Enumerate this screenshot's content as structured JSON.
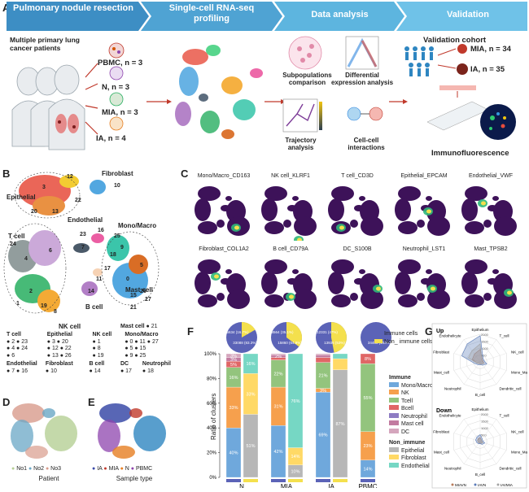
{
  "panel_a": {
    "letter": "A",
    "steps": [
      "Pulmonary nodule resection",
      "Single-cell RNA-seq profiling",
      "Data analysis",
      "Validation"
    ],
    "patients_label": "Multiple primary lung cancer patients",
    "samples": [
      {
        "name": "PBMC",
        "n": "PBMC, n = 3"
      },
      {
        "name": "N",
        "n": "N, n = 3"
      },
      {
        "name": "MIA",
        "n": "MIA, n = 3"
      },
      {
        "name": "IA",
        "n": "IA, n = 4"
      }
    ],
    "analyses": [
      "Subpopulations comparison",
      "Differential expression analysis",
      "Trajectory analysis",
      "Cell-cell interactions"
    ],
    "validation": {
      "cohort_label": "Validation cohort",
      "mia": "MIA, n = 34",
      "ia": "IA, n = 35",
      "method": "Immunofluorescence"
    },
    "colors": {
      "arrow_dark": "#2f7fb4",
      "arrow_light": "#76c6e8",
      "accent_red": "#c0392b"
    }
  },
  "panel_b": {
    "letter": "B",
    "cluster_labels": [
      "Fibroblast",
      "Epithelial",
      "Endothelial",
      "Mono/Macro",
      "T cell",
      "Mast cell",
      "B cell",
      "NK cell"
    ],
    "cluster_numbers": [
      "12",
      "3",
      "22",
      "20",
      "13",
      "10",
      "16",
      "23",
      "7",
      "25",
      "9",
      "18",
      "5",
      "24",
      "4",
      "6",
      "17",
      "11",
      "14",
      "21",
      "2",
      "1",
      "19",
      "8",
      "26",
      "0",
      "15",
      "27"
    ],
    "legend": [
      {
        "group": "T cell",
        "items": [
          "2",
          "23",
          "4",
          "24",
          "6"
        ]
      },
      {
        "group": "Epithelial",
        "items": [
          "3",
          "20",
          "12",
          "22",
          "13",
          "26"
        ]
      },
      {
        "group": "NK cell",
        "items": [
          "1",
          "8",
          "19"
        ]
      },
      {
        "group": "Mono/Macro",
        "items": [
          "0",
          "11",
          "27",
          "5",
          "15",
          "9",
          "25"
        ]
      },
      {
        "group": "Mast cell",
        "items": [
          "21"
        ]
      },
      {
        "group": "Endothelial",
        "items": [
          "7",
          "16"
        ]
      },
      {
        "group": "Fibroblast",
        "items": [
          "10"
        ]
      },
      {
        "group": "B cell",
        "items": [
          "14"
        ]
      },
      {
        "group": "DC",
        "items": [
          "17"
        ]
      },
      {
        "group": "Neutrophil",
        "items": [
          "18"
        ]
      }
    ]
  },
  "panel_c": {
    "letter": "C",
    "markers": [
      "Mono/Macro_CD163",
      "NK cell_KLRF1",
      "T cell_CD3D",
      "Epithelial_EPCAM",
      "Endothelial_VWF",
      "Fibroblast_COL1A2",
      "B cell_CD79A",
      "DC_S100B",
      "Neutrophil_LST1",
      "Mast_TPSB2"
    ]
  },
  "panel_d": {
    "letter": "D",
    "legend": [
      "No1",
      "No2",
      "No3"
    ],
    "caption": "Patient"
  },
  "panel_e": {
    "letter": "E",
    "legend": [
      "IA",
      "MIA",
      "N",
      "PBMC"
    ],
    "caption": "Sample type"
  },
  "panel_f": {
    "letter": "F",
    "pie_legend": [
      "Immune cells",
      "Non_ immune cells"
    ],
    "pies": [
      {
        "sample": "N",
        "labels": [
          "6634 (16.7%)",
          "33088 (83.3%)"
        ]
      },
      {
        "sample": "MIA",
        "labels": [
          "8564 (35.1%)",
          "15860 (64.9%)"
        ]
      },
      {
        "sample": "IA",
        "labels": [
          "12331 (47%)",
          "13936 (53%)"
        ]
      },
      {
        "sample": "PBMC",
        "labels": [
          "",
          "34456 (100%)"
        ]
      }
    ],
    "legend_immune_title": "Immune",
    "legend_nonimmune_title": "Non_immune",
    "legend_immune": [
      "Mono/Macro",
      "NK",
      "Tcell",
      "Bcell",
      "Neutrophil",
      "Mast cell",
      "DC"
    ],
    "legend_nonimmune": [
      "Epithelial",
      "Fibroblast",
      "Endothelial"
    ],
    "chart_data": {
      "type": "bar",
      "stacked": true,
      "ylabel": "Ratio of clusters",
      "yticks": [
        "0%",
        "20%",
        "40%",
        "60%",
        "80%",
        "100%"
      ],
      "ylim": [
        0,
        100
      ],
      "groups": [
        {
          "sample": "N",
          "bars": [
            {
              "kind": "immune",
              "segments": [
                {
                  "cat": "Mono/Macro",
                  "value": 40,
                  "label": "40%"
                },
                {
                  "cat": "NK",
                  "value": 33,
                  "label": "33%"
                },
                {
                  "cat": "Tcell",
                  "value": 16,
                  "label": "16%"
                },
                {
                  "cat": "Bcell",
                  "value": 5,
                  "label": "5%"
                },
                {
                  "cat": "Mast cell",
                  "value": 3,
                  "label": "3%"
                },
                {
                  "cat": "DC",
                  "value": 3,
                  "label": "3%"
                }
              ]
            },
            {
              "kind": "nonimmune",
              "segments": [
                {
                  "cat": "Epithelial",
                  "value": 51,
                  "label": "51%"
                },
                {
                  "cat": "Fibroblast",
                  "value": 33,
                  "label": "33%"
                },
                {
                  "cat": "Endothelial",
                  "value": 16,
                  "label": "16%"
                }
              ]
            }
          ]
        },
        {
          "sample": "MIA",
          "bars": [
            {
              "kind": "immune",
              "segments": [
                {
                  "cat": "Mono/Macro",
                  "value": 42,
                  "label": "42%"
                },
                {
                  "cat": "NK",
                  "value": 31,
                  "label": "31%"
                },
                {
                  "cat": "Tcell",
                  "value": 22,
                  "label": "22%"
                },
                {
                  "cat": "Bcell",
                  "value": 2,
                  "label": ""
                },
                {
                  "cat": "Mast cell",
                  "value": 2,
                  "label": "2%"
                },
                {
                  "cat": "DC",
                  "value": 1,
                  "label": ""
                }
              ]
            },
            {
              "kind": "nonimmune",
              "segments": [
                {
                  "cat": "Epithelial",
                  "value": 10,
                  "label": "10%"
                },
                {
                  "cat": "Fibroblast",
                  "value": 14,
                  "label": "14%"
                },
                {
                  "cat": "Endothelial",
                  "value": 76,
                  "label": "76%"
                }
              ]
            }
          ]
        },
        {
          "sample": "IA",
          "bars": [
            {
              "kind": "immune",
              "segments": [
                {
                  "cat": "Mono/Macro",
                  "value": 69,
                  "label": "69%"
                },
                {
                  "cat": "NK",
                  "value": 3,
                  "label": "3%"
                },
                {
                  "cat": "Tcell",
                  "value": 21,
                  "label": "21%"
                },
                {
                  "cat": "Bcell",
                  "value": 4,
                  "label": ""
                },
                {
                  "cat": "Mast cell",
                  "value": 2,
                  "label": ""
                },
                {
                  "cat": "DC",
                  "value": 1,
                  "label": ""
                }
              ]
            },
            {
              "kind": "nonimmune",
              "segments": [
                {
                  "cat": "Epithelial",
                  "value": 87,
                  "label": "87%"
                },
                {
                  "cat": "Fibroblast",
                  "value": 9,
                  "label": ""
                },
                {
                  "cat": "Endothelial",
                  "value": 4,
                  "label": ""
                }
              ]
            }
          ]
        },
        {
          "sample": "PBMC",
          "bars": [
            {
              "kind": "immune",
              "segments": [
                {
                  "cat": "Mono/Macro",
                  "value": 14,
                  "label": "14%"
                },
                {
                  "cat": "NK",
                  "value": 23,
                  "label": "23%"
                },
                {
                  "cat": "Tcell",
                  "value": 55,
                  "label": "55%"
                },
                {
                  "cat": "Bcell",
                  "value": 8,
                  "label": "8%"
                }
              ]
            }
          ]
        }
      ]
    }
  },
  "panel_g": {
    "letter": "G",
    "up_title": "Up",
    "down_title": "Down",
    "axes": [
      "Epithelium",
      "T_cell",
      "NK_cell",
      "Mono_Macro",
      "Dendritic_cell",
      "B_cell",
      "Neutrophil",
      "Mast_cell",
      "Fibroblast",
      "Endothelicyte"
    ],
    "ticks": [
      "500",
      "1000",
      "1500",
      "2000"
    ],
    "legend": [
      "MIAVN",
      "IAVN",
      "IAVMIA"
    ],
    "chart_data": [
      {
        "type": "radar",
        "title": "Up",
        "axes": [
          "Epithelium",
          "T_cell",
          "NK_cell",
          "Mono_Macro",
          "Dendritic_cell",
          "B_cell",
          "Neutrophil",
          "Mast_cell",
          "Fibroblast",
          "Endothelicyte"
        ],
        "rmax": 2000,
        "series": [
          {
            "name": "MIAVN",
            "values": [
              900,
              250,
              200,
              300,
              200,
              150,
              150,
              250,
              600,
              700
            ]
          },
          {
            "name": "IAVN",
            "values": [
              1900,
              350,
              300,
              500,
              300,
              200,
              250,
              400,
              1400,
              1600
            ]
          },
          {
            "name": "IAVMIA",
            "values": [
              1300,
              200,
              150,
              300,
              200,
              150,
              150,
              250,
              900,
              1000
            ]
          }
        ]
      },
      {
        "type": "radar",
        "title": "Down",
        "axes": [
          "Epithelium",
          "T_cell",
          "NK_cell",
          "Mono_Macro",
          "Dendritic_cell",
          "B_cell",
          "Neutrophil",
          "Mast_cell",
          "Fibroblast",
          "Endothelicyte"
        ],
        "rmax": 2000,
        "series": [
          {
            "name": "MIAVN",
            "values": [
              300,
              150,
              120,
              200,
              150,
              100,
              120,
              150,
              200,
              250
            ]
          },
          {
            "name": "IAVN",
            "values": [
              500,
              250,
              200,
              350,
              250,
              150,
              200,
              250,
              350,
              400
            ]
          },
          {
            "name": "IAVMIA",
            "values": [
              250,
              150,
              100,
              200,
              150,
              100,
              100,
              150,
              200,
              200
            ]
          }
        ]
      }
    ]
  }
}
